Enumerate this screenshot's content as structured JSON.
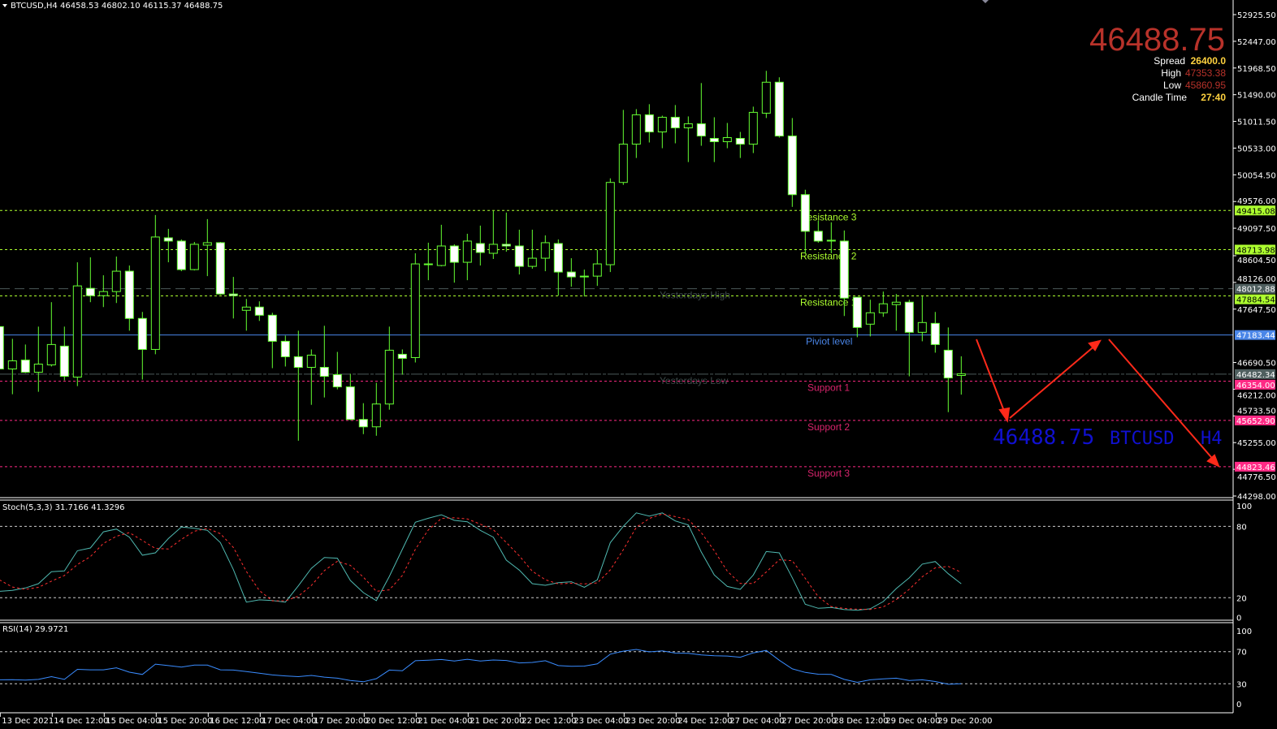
{
  "header": {
    "symbol_tf": "BTCUSD,H4",
    "ohlc": "46458.53 46802.10 46115.37 46488.75"
  },
  "info": {
    "price": "46488.75",
    "spread_label": "Spread",
    "spread_value": "26400.0",
    "high_label": "High",
    "high_value": "47353.38",
    "low_label": "Low",
    "low_value": "45860.95",
    "candle_time_label": "Candle Time",
    "candle_time_value": "27:40"
  },
  "watermark": {
    "price": "46488.75",
    "symbol": "BTCUSD",
    "timeframe": "H4"
  },
  "colors": {
    "candle_outline": "#66ff33",
    "bear_body": "#ffffff",
    "bull_body": "#000000",
    "resistance": "#adff2f",
    "support": "#ff2a85",
    "pivot": "#4a86e8",
    "yesterday": "#4b5a5a",
    "stoch_main": "#4fb8b0",
    "stoch_signal": "#ff3030",
    "rsi": "#3a8cff",
    "info_price": "#b8322a",
    "info_value": "#ffd23f",
    "watermark": "#1010d0",
    "arrow": "#ff2a1a"
  },
  "chart_data": [
    {
      "type": "candlestick",
      "title": "BTCUSD,H4",
      "price_axis_labels": [
        "52925.50",
        "52447.00",
        "51968.50",
        "51490.00",
        "51011.50",
        "50533.00",
        "50054.50",
        "49576.00",
        "49097.50",
        "48604.50",
        "48126.00",
        "47647.50",
        "46690.50",
        "46212.00",
        "45733.50",
        "45255.00",
        "44776.50",
        "44298.00"
      ],
      "ylim": [
        44298,
        52925.5
      ],
      "time_labels": [
        "13 Dec 2021",
        "14 Dec 12:00",
        "15 Dec 04:00",
        "15 Dec 20:00",
        "16 Dec 12:00",
        "17 Dec 04:00",
        "17 Dec 20:00",
        "20 Dec 12:00",
        "21 Dec 04:00",
        "21 Dec 20:00",
        "22 Dec 12:00",
        "23 Dec 04:00",
        "23 Dec 20:00",
        "24 Dec 12:00",
        "27 Dec 04:00",
        "27 Dec 20:00",
        "28 Dec 12:00",
        "29 Dec 04:00",
        "29 Dec 20:00"
      ],
      "ohlc_columns": [
        "open",
        "high",
        "low",
        "close"
      ],
      "candles": [
        [
          47334,
          47363,
          46312,
          46575
        ],
        [
          46575,
          47115,
          46122,
          46721
        ],
        [
          46735,
          47013,
          46502,
          46516
        ],
        [
          46516,
          47334,
          46166,
          46662
        ],
        [
          46648,
          47772,
          46619,
          47013
        ],
        [
          46984,
          47334,
          46370,
          46443
        ],
        [
          46429,
          48487,
          46268,
          48064
        ],
        [
          48020,
          48575,
          47772,
          47889
        ],
        [
          47889,
          48254,
          47684,
          47962
        ],
        [
          47962,
          48590,
          47757,
          48327
        ],
        [
          48327,
          48429,
          47261,
          47480
        ],
        [
          47480,
          47597,
          46385,
          46925
        ],
        [
          46925,
          49334,
          46838,
          48940
        ],
        [
          48925,
          49086,
          48487,
          48867
        ],
        [
          48867,
          48896,
          48327,
          48356
        ],
        [
          48356,
          48852,
          48341,
          48809
        ],
        [
          48794,
          49261,
          48239,
          48838
        ],
        [
          48838,
          48852,
          47903,
          47918
        ],
        [
          47918,
          48225,
          47480,
          47889
        ],
        [
          47626,
          47830,
          47261,
          47684
        ],
        [
          47684,
          47787,
          47436,
          47538
        ],
        [
          47538,
          47582,
          46589,
          47071
        ],
        [
          47071,
          47173,
          46619,
          46794
        ],
        [
          46794,
          47261,
          45290,
          46604
        ],
        [
          46604,
          46925,
          45932,
          46823
        ],
        [
          46604,
          47349,
          46064,
          46443
        ],
        [
          46473,
          46881,
          46210,
          46254
        ],
        [
          46254,
          46487,
          45655,
          45670
        ],
        [
          45670,
          45962,
          45407,
          45538
        ],
        [
          45538,
          46327,
          45378,
          45947
        ],
        [
          45947,
          47334,
          45845,
          46911
        ],
        [
          46838,
          46925,
          46473,
          46765
        ],
        [
          46779,
          48648,
          46692,
          48458
        ],
        [
          48458,
          48838,
          48166,
          48444
        ],
        [
          48429,
          49159,
          48414,
          48779
        ],
        [
          48779,
          48809,
          48122,
          48487
        ],
        [
          48487,
          48998,
          48166,
          48867
        ],
        [
          48823,
          49144,
          48429,
          48663
        ],
        [
          48648,
          49407,
          48546,
          48809
        ],
        [
          48809,
          49378,
          48677,
          48779
        ],
        [
          48779,
          49071,
          48268,
          48414
        ],
        [
          48414,
          49071,
          48371,
          48560
        ],
        [
          48560,
          48969,
          48327,
          48838
        ],
        [
          48823,
          48896,
          47889,
          48312
        ],
        [
          48312,
          48560,
          48049,
          48225
        ],
        [
          48239,
          48356,
          47874,
          48225
        ],
        [
          48239,
          48706,
          48064,
          48458
        ],
        [
          48444,
          49991,
          48312,
          49918
        ],
        [
          49918,
          51218,
          49874,
          50604
        ],
        [
          50604,
          51232,
          50356,
          51130
        ],
        [
          51130,
          51320,
          50634,
          50823
        ],
        [
          50823,
          51115,
          50531,
          51086
        ],
        [
          51086,
          51305,
          50619,
          50896
        ],
        [
          50896,
          51101,
          50283,
          50969
        ],
        [
          50969,
          51699,
          50575,
          50750
        ],
        [
          50707,
          51086,
          50283,
          50648
        ],
        [
          50648,
          50984,
          50531,
          50721
        ],
        [
          50707,
          50823,
          50356,
          50604
        ],
        [
          50604,
          51276,
          50444,
          51174
        ],
        [
          51159,
          51918,
          51072,
          51714
        ],
        [
          51714,
          51802,
          50721,
          50750
        ],
        [
          50750,
          51072,
          49480,
          49699
        ],
        [
          49699,
          49787,
          48648,
          49042
        ],
        [
          49042,
          49232,
          48838,
          48867
        ],
        [
          48882,
          49203,
          48648,
          48867
        ],
        [
          48867,
          49057,
          47524,
          47845
        ],
        [
          47860,
          47860,
          47144,
          47319
        ],
        [
          47378,
          47816,
          47159,
          47582
        ],
        [
          47582,
          47962,
          47509,
          47743
        ],
        [
          47728,
          47918,
          47261,
          47772
        ],
        [
          47772,
          47816,
          46443,
          47232
        ],
        [
          47232,
          47874,
          47071,
          47407
        ],
        [
          47392,
          47597,
          46867,
          47013
        ],
        [
          46911,
          47319,
          45801,
          46414
        ],
        [
          46458.53,
          46802.1,
          46115.37,
          46488.75
        ]
      ],
      "levels": [
        {
          "name": "Resistance 3",
          "value": 49415.08,
          "value_label": "49415.08",
          "kind": "resistance"
        },
        {
          "name": "Resistance 2",
          "value": 48713.98,
          "value_label": "48713.98",
          "kind": "resistance"
        },
        {
          "name": "Yesterdays High",
          "value": 48012.88,
          "value_label": "48012.88",
          "kind": "yesterday_high"
        },
        {
          "name": "Resistance 1",
          "value": 47884.54,
          "value_label": "47884.54",
          "kind": "resistance"
        },
        {
          "name": "Piviot level",
          "value": 47183.44,
          "value_label": "47183.44",
          "kind": "pivot"
        },
        {
          "name": "Yesterdays Low",
          "value": 46482.34,
          "value_label": "46482.34",
          "kind": "yesterday_low"
        },
        {
          "name": "Support 1",
          "value": 46354.0,
          "value_label": "46354.00",
          "kind": "support"
        },
        {
          "name": "Support 2",
          "value": 45652.9,
          "value_label": "45652.90",
          "kind": "support"
        },
        {
          "name": "Support 3",
          "value": 44823.46,
          "value_label": "44823.46",
          "kind": "support"
        }
      ]
    },
    {
      "type": "line",
      "title": "Stoch(5,3,3) 31.7166 41.3296",
      "ylim": [
        0,
        100
      ],
      "axis_labels": [
        "100",
        "80",
        "20",
        "0"
      ],
      "levels": [
        80,
        20
      ],
      "series": [
        {
          "name": "main",
          "values": [
            25.4,
            26.1,
            28.2,
            31.8,
            41.8,
            42.5,
            59.5,
            61.8,
            75.4,
            77.7,
            70.9,
            55.7,
            57.7,
            69.7,
            79.5,
            78.4,
            76.6,
            66.3,
            43.6,
            16.3,
            18.2,
            17.7,
            16.3,
            30,
            44.7,
            53.8,
            53.2,
            34.5,
            24.3,
            17.5,
            37.9,
            60.7,
            83.4,
            86.8,
            89.7,
            85,
            83.8,
            76.6,
            70.9,
            51.6,
            43.2,
            31.8,
            30.4,
            32.7,
            33.4,
            28.8,
            35,
            66.3,
            80,
            91.3,
            88.6,
            91.3,
            84.5,
            81.1,
            58.4,
            39.1,
            29.5,
            27,
            39.1,
            58.8,
            57.7,
            36.8,
            14.5,
            11.1,
            11.8,
            10,
            9.5,
            10.7,
            16.8,
            27.7,
            36.8,
            48.2,
            50.4,
            40.2,
            31.72
          ]
        },
        {
          "name": "signal",
          "values": [
            35,
            29,
            27,
            28.7,
            33.9,
            38.7,
            47.9,
            54.6,
            65.6,
            71.6,
            74.7,
            68.1,
            61.4,
            61,
            69,
            75.9,
            78.2,
            73.8,
            62.2,
            42.1,
            26,
            17.4,
            17.4,
            21.3,
            30.3,
            42.8,
            50.6,
            47.2,
            37.3,
            25.4,
            26.6,
            38.7,
            60.7,
            77,
            86.6,
            87.2,
            86.2,
            81.8,
            77.1,
            66.4,
            55.2,
            42.2,
            35.1,
            31.6,
            32.2,
            31.6,
            32.4,
            43.4,
            60.4,
            79.2,
            86.6,
            90.4,
            88.1,
            85.6,
            74.7,
            59.5,
            42.3,
            31.9,
            31.9,
            41.6,
            51.9,
            51.1,
            36.3,
            20.8,
            12.5,
            11,
            10.4,
            10.1,
            12.3,
            18.4,
            27.1,
            37.6,
            45.1,
            46.3,
            41.33
          ]
        }
      ]
    },
    {
      "type": "line",
      "title": "RSI(14) 29.9721",
      "ylim": [
        0,
        100
      ],
      "axis_labels": [
        "100",
        "70",
        "30",
        "0"
      ],
      "levels": [
        70,
        30
      ],
      "series": [
        {
          "name": "RSI",
          "values": [
            34.9,
            35.2,
            34.6,
            35.5,
            38.9,
            35.5,
            48,
            47.4,
            47.4,
            49.9,
            44.4,
            41.6,
            54.4,
            52.6,
            50.8,
            53.2,
            53.2,
            47.4,
            47.1,
            45.3,
            43.1,
            41,
            39.8,
            38.9,
            40.4,
            38.3,
            37,
            34,
            32.5,
            36.4,
            47.1,
            46.2,
            58.7,
            59.3,
            60.2,
            58.4,
            60.5,
            58.4,
            59.6,
            59,
            56,
            56.6,
            58.7,
            52.6,
            51.7,
            52,
            54.7,
            66.9,
            70.6,
            72.7,
            69.7,
            70.9,
            68.2,
            67.9,
            66,
            64.8,
            64.5,
            63,
            68.5,
            71.5,
            59.3,
            48.6,
            44.1,
            41.9,
            41.6,
            35.5,
            31.8,
            34.9,
            36.1,
            37,
            34,
            34.9,
            32.8,
            29.4,
            29.97
          ]
        }
      ]
    }
  ]
}
